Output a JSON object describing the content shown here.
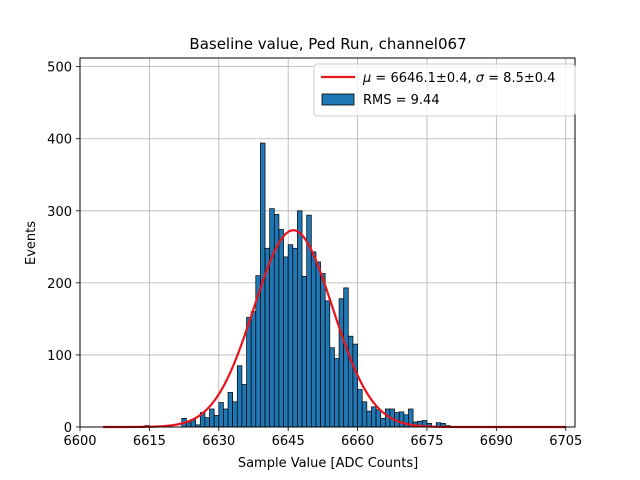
{
  "chart_data": {
    "type": "bar",
    "title": "Baseline value, Ped Run, channel067",
    "xlabel": "Sample Value [ADC Counts]",
    "ylabel": "Events",
    "xlim": [
      6600,
      6707
    ],
    "ylim": [
      0,
      512
    ],
    "xticks": [
      6600,
      6615,
      6630,
      6645,
      6660,
      6675,
      6690,
      6705
    ],
    "yticks": [
      0,
      100,
      200,
      300,
      400,
      500
    ],
    "grid": true,
    "legend_position": "top-right",
    "colors": {
      "bars": "#1f77b4",
      "bar_edge": "#000000",
      "fit": "#e8141c",
      "grid": "#b0b0b0"
    },
    "series": [
      {
        "name": "RMS = 9.44",
        "kind": "histogram",
        "bin_width": 1,
        "bin_starts": [
          6614,
          6622,
          6623,
          6624,
          6625,
          6626,
          6627,
          6628,
          6629,
          6630,
          6631,
          6632,
          6633,
          6634,
          6635,
          6636,
          6637,
          6638,
          6639,
          6640,
          6641,
          6642,
          6643,
          6644,
          6645,
          6646,
          6647,
          6648,
          6649,
          6650,
          6651,
          6652,
          6653,
          6654,
          6655,
          6656,
          6657,
          6658,
          6659,
          6660,
          6661,
          6662,
          6663,
          6664,
          6665,
          6666,
          6667,
          6668,
          6669,
          6670,
          6671,
          6672,
          6673,
          6674,
          6675,
          6677,
          6678,
          6679
        ],
        "counts": [
          2,
          12,
          6,
          10,
          3,
          20,
          13,
          25,
          16,
          34,
          25,
          48,
          35,
          85,
          59,
          152,
          160,
          210,
          394,
          248,
          303,
          295,
          274,
          236,
          253,
          248,
          300,
          209,
          294,
          243,
          229,
          213,
          175,
          110,
          95,
          178,
          193,
          126,
          115,
          52,
          35,
          22,
          28,
          24,
          12,
          25,
          25,
          20,
          21,
          17,
          25,
          7,
          8,
          9,
          5,
          6,
          5,
          2
        ]
      },
      {
        "name": "$\\mu = 6646.1 \\pm 0.4$, $\\sigma = 8.5 \\pm 0.4$",
        "kind": "line",
        "model": "gaussian",
        "mu": 6646.1,
        "sigma": 8.5,
        "amplitude": 273,
        "x_range": [
          6605,
          6705
        ]
      }
    ],
    "legend": {
      "fit_label_parts": [
        "μ",
        " = 6646.1±0.4, ",
        "σ",
        " = 8.5±0.4"
      ],
      "hist_label": "RMS = 9.44"
    }
  }
}
